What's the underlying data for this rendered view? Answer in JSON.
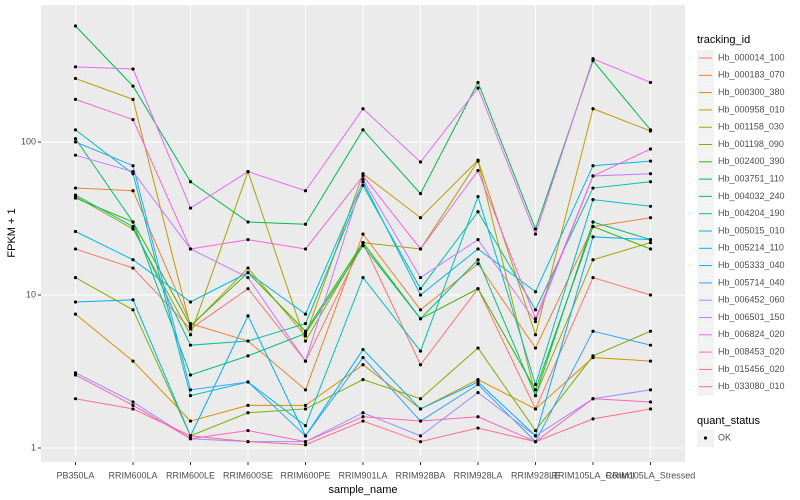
{
  "chart_data": {
    "type": "line",
    "x_label": "sample_name",
    "y_label": "FPKM + 1",
    "log_y": true,
    "grid": true,
    "point_color": "#000000",
    "legend_position": "right",
    "legend_title": "tracking_id",
    "point_legend": {
      "title": "quant_status",
      "labels": [
        "OK"
      ]
    },
    "categories": [
      "PB350LA",
      "RRIM600LA",
      "RRIM600LE",
      "RRIM600SE",
      "RRIM600PE",
      "RRIM901LA",
      "RRIM928BA",
      "RRIM928LA",
      "RRIM928LE",
      "RRIM105LA_Control",
      "RRIM105LA_Stressed"
    ],
    "ylim": [
      0.81,
      786
    ],
    "yticks": [
      1,
      10,
      100
    ],
    "series": [
      {
        "name": "Hb_000014_100",
        "color": "#F8766D",
        "values": [
          20,
          15,
          6,
          11,
          3.7,
          22,
          3.5,
          11,
          1.8,
          13,
          10
        ]
      },
      {
        "name": "Hb_000183_070",
        "color": "#EA8331",
        "values": [
          50,
          48,
          6.5,
          5,
          2.4,
          25,
          8,
          16,
          4.5,
          28,
          32
        ]
      },
      {
        "name": "Hb_000300_380",
        "color": "#D89000",
        "values": [
          7.5,
          3.7,
          1.5,
          1.9,
          1.9,
          3.5,
          1.8,
          2.8,
          1.8,
          3.9,
          3.7
        ]
      },
      {
        "name": "Hb_000958_010",
        "color": "#C09B00",
        "values": [
          260,
          190,
          6.2,
          15,
          5.4,
          62,
          32,
          76,
          5.5,
          165,
          118
        ]
      },
      {
        "name": "Hb_001158_030",
        "color": "#A3A500",
        "values": [
          44,
          27,
          5.5,
          64,
          5,
          22,
          20,
          75,
          2.2,
          17,
          22
        ]
      },
      {
        "name": "Hb_001198_090",
        "color": "#7CAE00",
        "values": [
          13,
          8,
          1.2,
          1.7,
          1.8,
          2.8,
          2.1,
          4.5,
          1.3,
          4,
          5.8
        ]
      },
      {
        "name": "Hb_002400_390",
        "color": "#39B600",
        "values": [
          43,
          30,
          6.3,
          14,
          5.8,
          22,
          7,
          11,
          2.4,
          28,
          20
        ]
      },
      {
        "name": "Hb_003751_110",
        "color": "#00BB4E",
        "values": [
          573,
          232,
          55,
          30,
          29,
          120,
          46,
          245,
          27,
          340,
          120
        ]
      },
      {
        "name": "Hb_004032_240",
        "color": "#00BF7D",
        "values": [
          105,
          30,
          3,
          4,
          5.6,
          21,
          7,
          17,
          2.2,
          30,
          23
        ]
      },
      {
        "name": "Hb_004204_190",
        "color": "#00C1A3",
        "values": [
          45,
          28,
          4.7,
          5,
          6.5,
          52,
          11,
          35,
          8,
          50,
          55
        ]
      },
      {
        "name": "Hb_005015_010",
        "color": "#00BFC4",
        "values": [
          120,
          62,
          2.2,
          2.7,
          1.4,
          13,
          4.3,
          44,
          2.6,
          42,
          38
        ]
      },
      {
        "name": "Hb_005214_110",
        "color": "#00BAE0",
        "values": [
          26,
          17,
          9,
          14,
          7.5,
          55,
          10,
          20,
          10.5,
          70,
          75
        ]
      },
      {
        "name": "Hb_005333_040",
        "color": "#00B0F6",
        "values": [
          9,
          9.3,
          1.2,
          7.3,
          1.2,
          4.4,
          1.8,
          2.7,
          1.2,
          24,
          23
        ]
      },
      {
        "name": "Hb_005714_040",
        "color": "#35A2FF",
        "values": [
          100,
          70,
          2.4,
          2.7,
          1.2,
          3.9,
          1.5,
          2.6,
          1.1,
          5.8,
          4.7
        ]
      },
      {
        "name": "Hb_006452_060",
        "color": "#9590FF",
        "values": [
          3.1,
          2,
          1.15,
          1.1,
          1.1,
          1.7,
          1.2,
          2.3,
          1.2,
          2.1,
          2.4
        ]
      },
      {
        "name": "Hb_006501_150",
        "color": "#C77CFF",
        "values": [
          82,
          64,
          20,
          13,
          3.7,
          57,
          13,
          23,
          6.7,
          60,
          62
        ]
      },
      {
        "name": "Hb_006824_020",
        "color": "#E76BF3",
        "values": [
          310,
          300,
          37,
          64,
          48,
          165,
          74,
          225,
          25,
          350,
          245
        ]
      },
      {
        "name": "Hb_008453_020",
        "color": "#FA62DB",
        "values": [
          190,
          140,
          20,
          23,
          20,
          60,
          20,
          65,
          7,
          60,
          90
        ]
      },
      {
        "name": "Hb_015456_020",
        "color": "#FF62BC",
        "values": [
          3,
          1.9,
          1.15,
          1.3,
          1.1,
          1.6,
          1.5,
          1.6,
          1.1,
          2.1,
          2.0
        ]
      },
      {
        "name": "Hb_033080_010",
        "color": "#FF6C91",
        "values": [
          2.1,
          1.8,
          1.2,
          1.1,
          1.05,
          1.5,
          1.1,
          1.35,
          1.1,
          1.55,
          1.8
        ]
      }
    ]
  }
}
